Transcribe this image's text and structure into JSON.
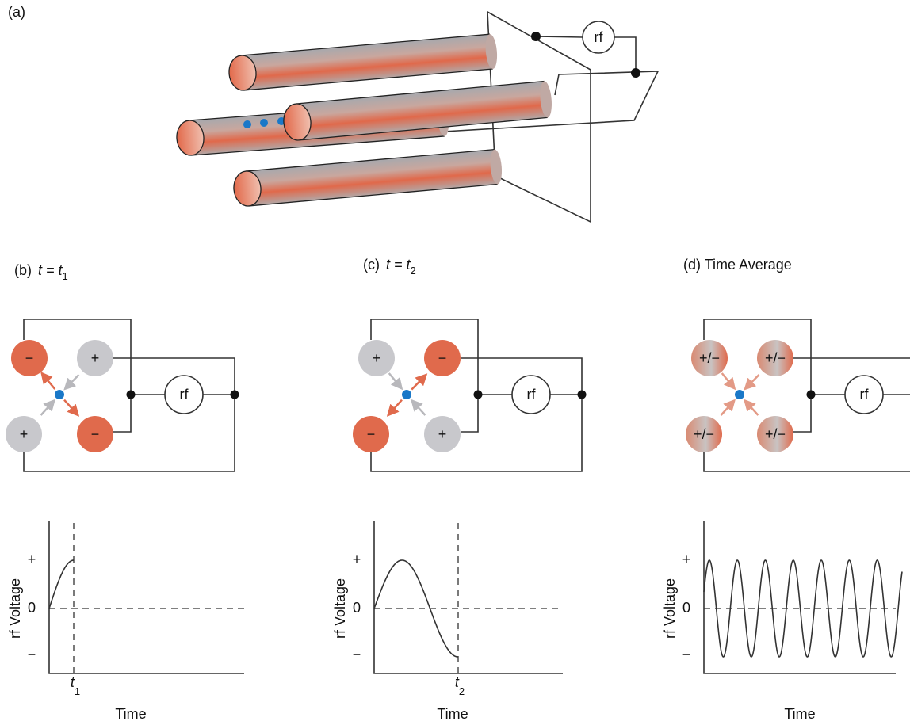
{
  "panel_a": {
    "label": "(a)",
    "rf": "rf"
  },
  "panels": [
    {
      "label": "(b)",
      "equation": "t = t",
      "subscript": "1",
      "electrodes": [
        "−",
        "+",
        "+",
        "−"
      ],
      "rf": "rf",
      "graph": {
        "y_label": "rf Voltage",
        "x_label": "Time",
        "y_tick_labels": [
          "+",
          "0",
          "−"
        ],
        "marker": "t",
        "marker_subscript": "1"
      }
    },
    {
      "label": "(c)",
      "equation": "t =  t",
      "subscript": "2",
      "electrodes": [
        "+",
        "−",
        "−",
        "+"
      ],
      "rf": "rf",
      "graph": {
        "y_label": "rf Voltage",
        "x_label": "Time",
        "y_tick_labels": [
          "+",
          "0",
          "−"
        ],
        "marker": "t",
        "marker_subscript": "2"
      }
    },
    {
      "label": "(d) Time Average",
      "electrodes": [
        "+/−",
        "+/−",
        "+/−",
        "+/−"
      ],
      "rf": "rf",
      "graph": {
        "y_label": "rf Voltage",
        "x_label": "Time",
        "y_tick_labels": [
          "+",
          "0",
          "−"
        ]
      }
    }
  ]
}
